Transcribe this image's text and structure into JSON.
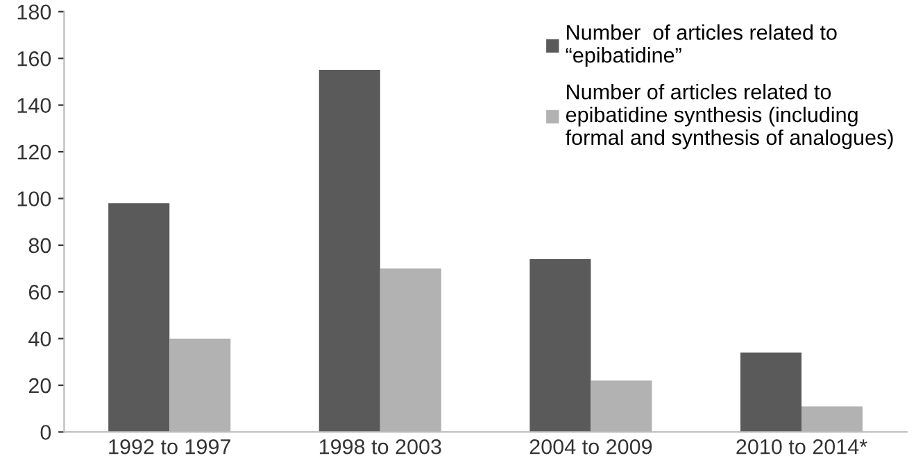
{
  "chart_data": {
    "type": "bar",
    "categories": [
      "1992 to 1997",
      "1998 to 2003",
      "2004 to 2009",
      "2010 to 2014*"
    ],
    "series": [
      {
        "name": "Number  of articles related to\n“epibatidine”",
        "color": "#5a5a5a",
        "values": [
          98,
          155,
          74,
          34
        ]
      },
      {
        "name": "Number of articles related to\nepibatidine synthesis (including\nformal and synthesis of analogues)",
        "color": "#b2b2b2",
        "values": [
          40,
          70,
          22,
          11
        ]
      }
    ],
    "ylim": [
      0,
      180
    ],
    "yticks": [
      0,
      20,
      40,
      60,
      80,
      100,
      120,
      140,
      160,
      180
    ],
    "grid": false,
    "legend": "top right"
  }
}
